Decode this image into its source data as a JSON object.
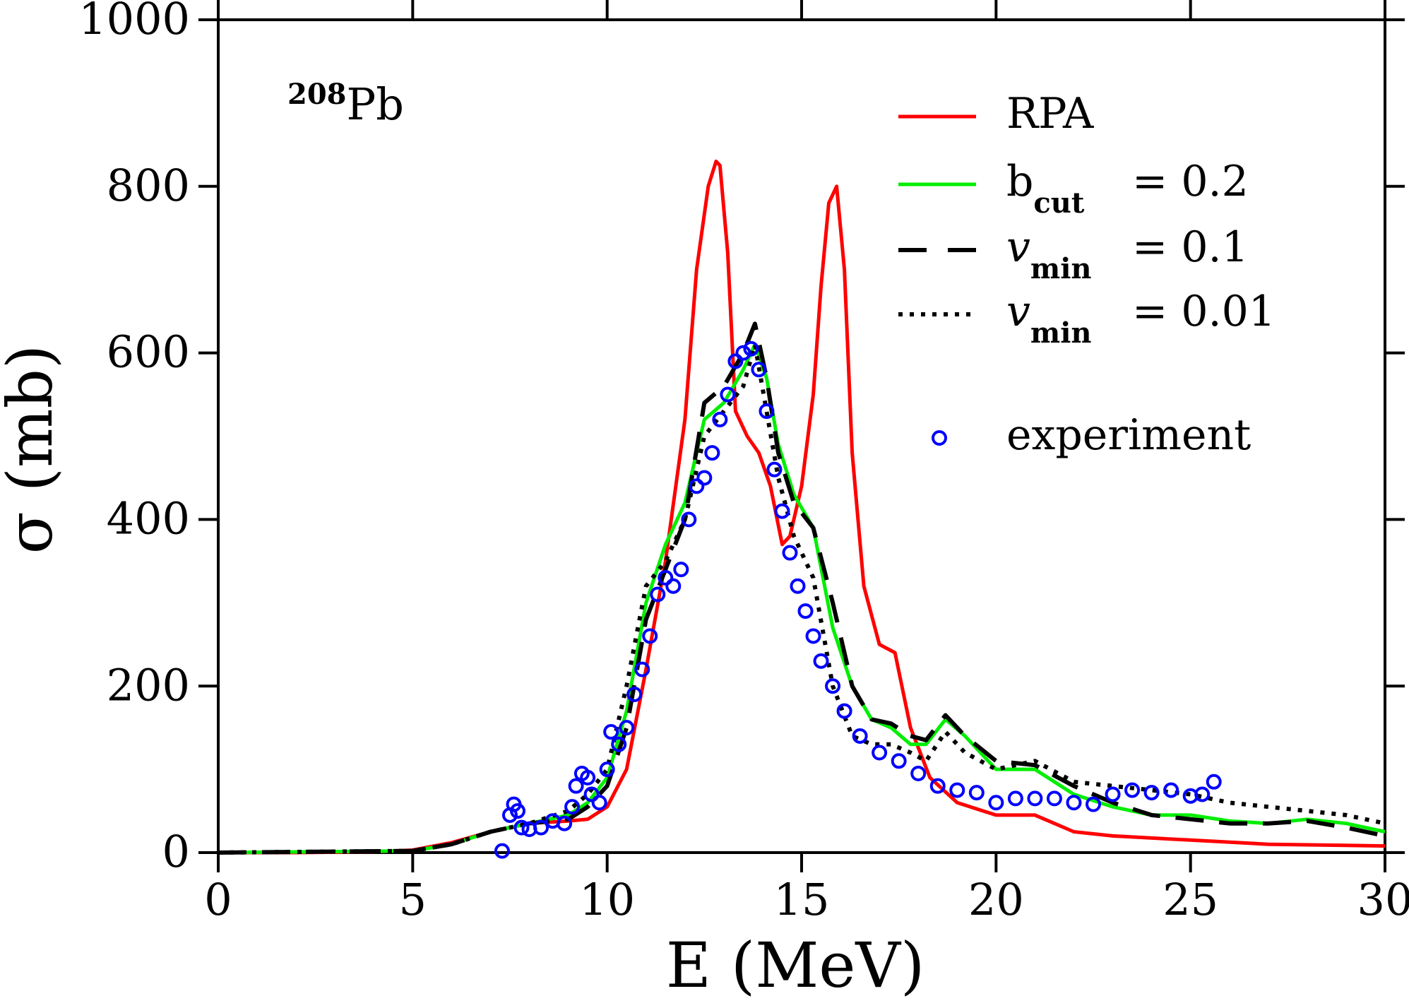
{
  "chart_data": {
    "type": "line",
    "xlabel": "E (MeV)",
    "ylabel": "σ (mb)",
    "annotation": {
      "sup": "208",
      "text": "Pb"
    },
    "xlim": [
      0,
      30
    ],
    "xticks": [
      0,
      5,
      10,
      15,
      20,
      25,
      30
    ],
    "ylim": [
      0,
      1000
    ],
    "yticks": [
      0,
      200,
      400,
      600,
      800,
      1000
    ],
    "grid": false,
    "legend": "upper right",
    "series": [
      {
        "name": "RPA",
        "color": "#ff0000",
        "style": "solid",
        "x": [
          0,
          2,
          4,
          5,
          6,
          7,
          8,
          9,
          9.5,
          10,
          10.5,
          11,
          11.5,
          12,
          12.3,
          12.6,
          12.8,
          12.9,
          13.1,
          13.3,
          13.6,
          13.9,
          14.2,
          14.5,
          14.7,
          15,
          15.3,
          15.5,
          15.7,
          15.9,
          16.1,
          16.3,
          16.6,
          17,
          17.4,
          17.8,
          18.3,
          19,
          20,
          21,
          21.5,
          22,
          23,
          25,
          27,
          30
        ],
        "values": [
          0,
          0,
          1,
          3,
          12,
          25,
          35,
          38,
          40,
          55,
          100,
          220,
          350,
          520,
          700,
          800,
          830,
          825,
          720,
          530,
          500,
          480,
          440,
          370,
          380,
          440,
          550,
          680,
          780,
          800,
          700,
          480,
          320,
          250,
          240,
          150,
          90,
          60,
          45,
          45,
          35,
          25,
          20,
          15,
          10,
          8
        ]
      },
      {
        "name": "b",
        "name_sub": "cut",
        "name_rest": "= 0.2",
        "color": "#00ee00",
        "style": "solid",
        "x": [
          0,
          5,
          6,
          7,
          8,
          9,
          9.5,
          10,
          10.5,
          11,
          11.5,
          12,
          12.5,
          13,
          13.5,
          13.8,
          14.1,
          14.4,
          14.8,
          15.3,
          15.8,
          16.3,
          16.8,
          17.3,
          17.8,
          18.2,
          18.7,
          19.2,
          20,
          21,
          22,
          23,
          24,
          25,
          26,
          27,
          28,
          29,
          30
        ],
        "values": [
          0,
          2,
          10,
          25,
          35,
          45,
          60,
          90,
          170,
          300,
          370,
          420,
          520,
          540,
          580,
          610,
          570,
          490,
          430,
          390,
          270,
          200,
          160,
          150,
          130,
          130,
          160,
          140,
          100,
          100,
          70,
          55,
          45,
          45,
          38,
          35,
          40,
          35,
          25
        ]
      },
      {
        "name": "v",
        "name_sub": "min",
        "name_rest": "= 0.1",
        "color": "#000000",
        "style": "dashed",
        "x": [
          0,
          5,
          6,
          7,
          8,
          9,
          9.5,
          10,
          10.5,
          11,
          11.5,
          12,
          12.5,
          13,
          13.5,
          13.8,
          14.1,
          14.4,
          14.8,
          15.3,
          15.8,
          16.3,
          16.8,
          17.3,
          17.8,
          18.2,
          18.7,
          19.2,
          20,
          21,
          22,
          23,
          24,
          25,
          26,
          27,
          28,
          29,
          30
        ],
        "values": [
          0,
          2,
          10,
          25,
          35,
          40,
          55,
          80,
          150,
          280,
          340,
          400,
          540,
          560,
          600,
          635,
          570,
          480,
          420,
          390,
          300,
          200,
          160,
          155,
          140,
          135,
          165,
          140,
          110,
          105,
          80,
          60,
          45,
          40,
          35,
          35,
          38,
          30,
          20
        ]
      },
      {
        "name": "v",
        "name_sub": "min",
        "name_rest": "= 0.01",
        "color": "#000000",
        "style": "dotted",
        "x": [
          0,
          5,
          6,
          7,
          8,
          9,
          9.5,
          10,
          10.5,
          11,
          11.5,
          12,
          12.5,
          13,
          13.5,
          13.8,
          14.1,
          14.4,
          14.8,
          15.3,
          15.8,
          16.3,
          16.8,
          17.3,
          17.8,
          18.2,
          18.7,
          19.2,
          20,
          21,
          22,
          23,
          24,
          25,
          26,
          27,
          28,
          29,
          30
        ],
        "values": [
          0,
          2,
          10,
          25,
          35,
          50,
          70,
          100,
          200,
          320,
          350,
          400,
          500,
          530,
          560,
          610,
          530,
          450,
          380,
          330,
          200,
          140,
          130,
          130,
          120,
          110,
          145,
          120,
          100,
          110,
          85,
          80,
          75,
          70,
          60,
          55,
          50,
          45,
          35
        ]
      },
      {
        "name": "experiment",
        "color": "#0000ff",
        "style": "markers",
        "x": [
          7.3,
          7.5,
          7.6,
          7.7,
          7.8,
          8.0,
          8.3,
          8.6,
          8.9,
          9.1,
          9.2,
          9.35,
          9.5,
          9.6,
          9.8,
          10.0,
          10.1,
          10.3,
          10.5,
          10.7,
          10.9,
          11.1,
          11.3,
          11.5,
          11.7,
          11.9,
          12.1,
          12.3,
          12.5,
          12.7,
          12.9,
          13.1,
          13.3,
          13.5,
          13.7,
          13.9,
          14.1,
          14.3,
          14.5,
          14.7,
          14.9,
          15.1,
          15.3,
          15.5,
          15.8,
          16.1,
          16.5,
          17,
          17.5,
          18,
          18.5,
          19,
          19.5,
          20,
          20.5,
          21,
          21.5,
          22,
          22.5,
          23,
          23.5,
          24,
          24.5,
          25,
          25.3,
          25.6
        ],
        "values": [
          2,
          45,
          58,
          50,
          30,
          28,
          30,
          38,
          35,
          55,
          80,
          95,
          90,
          70,
          60,
          100,
          145,
          130,
          150,
          190,
          220,
          260,
          310,
          330,
          320,
          340,
          400,
          440,
          450,
          480,
          520,
          550,
          590,
          600,
          605,
          580,
          530,
          460,
          410,
          360,
          320,
          290,
          260,
          230,
          200,
          170,
          140,
          120,
          110,
          95,
          80,
          75,
          72,
          60,
          65,
          65,
          65,
          60,
          58,
          70,
          75,
          72,
          75,
          68,
          70,
          85
        ]
      }
    ]
  }
}
